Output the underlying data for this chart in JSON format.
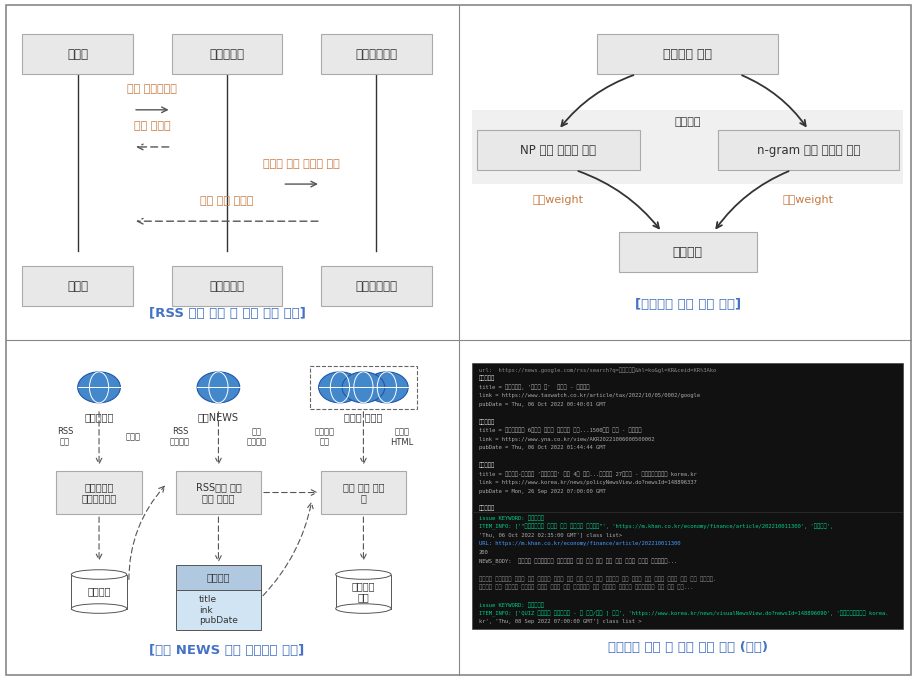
{
  "bg_color": "#ffffff",
  "box_fill": "#e8e8e8",
  "box_border": "#aaaaaa",
  "orange_text": "#c87941",
  "caption_color": "#4472c4",
  "panel1_caption": "[RSS 기반 수집 및 이슈 후보 추출]",
  "panel2_caption": "[이슈후보 추출 방안 개요]",
  "panel3_caption": "[구글 NEWS 기반 연관기사 수집]",
  "panel4_caption": "연관기사 목록 및 본문 추출 결과 (예시)",
  "seq_box1": "시스템",
  "seq_box2": "정책게시판",
  "seq_box3": "핵심어주추기",
  "seq_msg1": "일별 게시글요청",
  "seq_msg2": "일별 게시글",
  "seq_msg3": "게시글 제목 리스트 전달",
  "seq_msg4": "일별 정책 키워드",
  "tree_root": "정책기사 제목",
  "tree_method": "추출방법",
  "tree_left": "NP 기준 핵심어 추출",
  "tree_right": "n-gram 기준 핵심어 추출",
  "tree_weight_left": "빈도weight",
  "tree_weight_right": "빈도weight",
  "tree_bottom": "이슈후보",
  "flow_globe1_label": "정책게시판",
  "flow_globe2_label": "구글NEWS",
  "flow_globe3_label": "미디어 사이트",
  "flow_box1": "정책게시판\n이슈후보추출",
  "flow_box2": "RSS기반 연관\n기사 수집기",
  "flow_box3": "내용 본문 추출\n기",
  "flow_db1": "이슈후보",
  "flow_db2_title": "연관기사",
  "flow_db2_fields": "title\nink\npubDate",
  "flow_db3": "연관기사\n본문",
  "flow_label_rss1": "RSS\n요청",
  "flow_label_post": "게시로",
  "flow_label_rss2": "RSS\n검색요청",
  "flow_label_related": "연관\n기사목록",
  "flow_label_req": "연관기사\n요청",
  "flow_label_html": "게시글\nHTML"
}
